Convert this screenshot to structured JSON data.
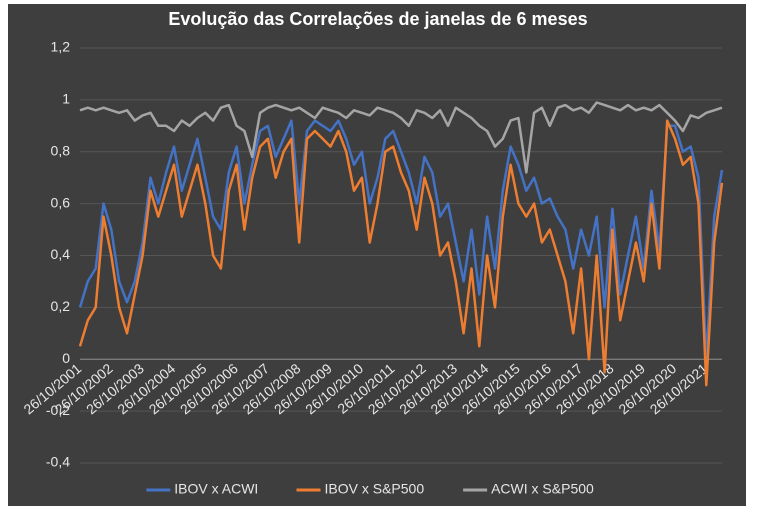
{
  "chart_data": {
    "type": "line",
    "title": "Evolução das Correlações de janelas de 6 meses",
    "categories": [
      "26/10/2001",
      null,
      null,
      null,
      "26/10/2002",
      null,
      null,
      null,
      "26/10/2003",
      null,
      null,
      null,
      "26/10/2004",
      null,
      null,
      null,
      "26/10/2005",
      null,
      null,
      null,
      "26/10/2006",
      null,
      null,
      null,
      "26/10/2007",
      null,
      null,
      null,
      "26/10/2008",
      null,
      null,
      null,
      "26/10/2009",
      null,
      null,
      null,
      "26/10/2010",
      null,
      null,
      null,
      "26/10/2011",
      null,
      null,
      null,
      "26/10/2012",
      null,
      null,
      null,
      "26/10/2013",
      null,
      null,
      null,
      "26/10/2014",
      null,
      null,
      null,
      "26/10/2015",
      null,
      null,
      null,
      "26/10/2016",
      null,
      null,
      null,
      "26/10/2017",
      null,
      null,
      null,
      "26/10/2018",
      null,
      null,
      null,
      "26/10/2019",
      null,
      null,
      null,
      "26/10/2020",
      null,
      null,
      null,
      "26/10/2021",
      null,
      null
    ],
    "series": [
      {
        "name": "IBOV x ACWI",
        "color": "#4472c4",
        "values": [
          0.2,
          0.3,
          0.35,
          0.6,
          0.5,
          0.3,
          0.22,
          0.3,
          0.45,
          0.7,
          0.6,
          0.72,
          0.82,
          0.65,
          0.75,
          0.85,
          0.7,
          0.55,
          0.5,
          0.72,
          0.82,
          0.6,
          0.75,
          0.88,
          0.9,
          0.78,
          0.85,
          0.92,
          0.6,
          0.88,
          0.92,
          0.9,
          0.88,
          0.92,
          0.85,
          0.75,
          0.8,
          0.6,
          0.7,
          0.85,
          0.88,
          0.8,
          0.72,
          0.6,
          0.78,
          0.72,
          0.55,
          0.6,
          0.45,
          0.3,
          0.5,
          0.25,
          0.55,
          0.35,
          0.65,
          0.82,
          0.75,
          0.65,
          0.7,
          0.6,
          0.62,
          0.55,
          0.5,
          0.35,
          0.5,
          0.4,
          0.55,
          0.2,
          0.58,
          0.25,
          0.4,
          0.55,
          0.35,
          0.65,
          0.42,
          0.9,
          0.9,
          0.8,
          0.82,
          0.7,
          0.0,
          0.55,
          0.73
        ]
      },
      {
        "name": "IBOV x S&P500",
        "color": "#ed7d31",
        "values": [
          0.05,
          0.15,
          0.2,
          0.55,
          0.4,
          0.2,
          0.1,
          0.25,
          0.4,
          0.65,
          0.55,
          0.65,
          0.75,
          0.55,
          0.65,
          0.75,
          0.6,
          0.4,
          0.35,
          0.65,
          0.75,
          0.5,
          0.7,
          0.82,
          0.85,
          0.7,
          0.8,
          0.85,
          0.45,
          0.85,
          0.88,
          0.85,
          0.82,
          0.88,
          0.8,
          0.65,
          0.7,
          0.45,
          0.6,
          0.8,
          0.82,
          0.72,
          0.65,
          0.5,
          0.7,
          0.6,
          0.4,
          0.45,
          0.3,
          0.1,
          0.35,
          0.05,
          0.4,
          0.2,
          0.55,
          0.75,
          0.6,
          0.55,
          0.6,
          0.45,
          0.5,
          0.4,
          0.3,
          0.1,
          0.35,
          0.0,
          0.4,
          -0.05,
          0.5,
          0.15,
          0.3,
          0.45,
          0.3,
          0.6,
          0.35,
          0.92,
          0.85,
          0.75,
          0.78,
          0.6,
          -0.1,
          0.45,
          0.68
        ]
      },
      {
        "name": "ACWI x S&P500",
        "color": "#a5a5a5",
        "values": [
          0.96,
          0.97,
          0.96,
          0.97,
          0.96,
          0.95,
          0.96,
          0.92,
          0.94,
          0.95,
          0.9,
          0.9,
          0.88,
          0.92,
          0.9,
          0.93,
          0.95,
          0.92,
          0.97,
          0.98,
          0.9,
          0.88,
          0.78,
          0.95,
          0.97,
          0.98,
          0.97,
          0.96,
          0.97,
          0.95,
          0.93,
          0.97,
          0.96,
          0.95,
          0.93,
          0.96,
          0.95,
          0.94,
          0.97,
          0.96,
          0.95,
          0.93,
          0.9,
          0.96,
          0.95,
          0.93,
          0.96,
          0.9,
          0.97,
          0.95,
          0.93,
          0.9,
          0.88,
          0.82,
          0.85,
          0.92,
          0.93,
          0.72,
          0.95,
          0.97,
          0.9,
          0.97,
          0.98,
          0.96,
          0.97,
          0.95,
          0.99,
          0.98,
          0.97,
          0.96,
          0.98,
          0.96,
          0.97,
          0.96,
          0.98,
          0.95,
          0.92,
          0.88,
          0.94,
          0.93,
          0.95,
          0.96,
          0.97
        ]
      }
    ],
    "ylim": [
      -0.4,
      1.2
    ],
    "yticks": [
      {
        "value": -0.4,
        "label": "-0,4"
      },
      {
        "value": -0.2,
        "label": "-0,2"
      },
      0,
      {
        "value": 0.2,
        "label": "0,2"
      },
      {
        "value": 0.4,
        "label": "0,4"
      },
      {
        "value": 0.6,
        "label": "0,6"
      },
      {
        "value": 0.8,
        "label": "0,8"
      },
      1,
      {
        "value": 1.2,
        "label": "1,2"
      }
    ],
    "grid": true,
    "legend": "bottom"
  }
}
